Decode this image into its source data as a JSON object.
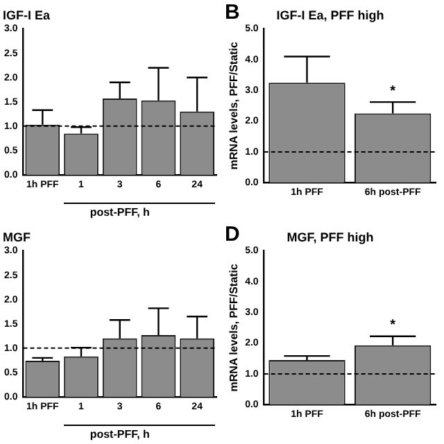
{
  "chart_data": [
    {
      "type": "bar",
      "title": "IGF-I Ea",
      "categories": [
        "1h PFF",
        "1",
        "3",
        "6",
        "24"
      ],
      "values": [
        1.03,
        0.85,
        1.57,
        1.53,
        1.3
      ],
      "errors": [
        [
          1.03,
          1.33
        ],
        [
          0.85,
          0.98
        ],
        [
          1.57,
          1.9
        ],
        [
          1.53,
          2.2
        ],
        [
          1.3,
          2.0
        ]
      ],
      "color": "#8c8c8c",
      "xlabel": "post-PFF, h",
      "ylim": [
        0,
        3
      ],
      "yticks": [
        {
          "value": 0,
          "label": "0.0"
        },
        {
          "value": 0.5,
          "label": "0.5"
        },
        {
          "value": 1,
          "label": "1.0"
        },
        {
          "value": 1.5,
          "label": "1.5"
        },
        {
          "value": 2,
          "label": "2.0"
        },
        {
          "value": 2.5,
          "label": "2.5"
        },
        {
          "value": 3,
          "label": "3.0"
        }
      ],
      "ref_lines": [
        {
          "axis": "y",
          "value": 1,
          "line_style": "dashed"
        }
      ],
      "grid": false,
      "legend": false
    },
    {
      "type": "bar",
      "title": "IGF-I Ea, PFF high",
      "categories": [
        "1h PFF",
        "6h post-PFF"
      ],
      "values": [
        3.25,
        2.25
      ],
      "errors": [
        [
          3.25,
          4.1
        ],
        [
          2.25,
          2.62
        ]
      ],
      "color": "#8c8c8c",
      "ylabel": "mRNA levels, PFF/Static",
      "ylim": [
        0,
        5
      ],
      "yticks": [
        {
          "value": 0,
          "label": "0.0"
        },
        {
          "value": 1,
          "label": "1.0"
        },
        {
          "value": 2,
          "label": "2.0"
        },
        {
          "value": 3,
          "label": "3.0"
        },
        {
          "value": 4,
          "label": "4.0"
        },
        {
          "value": 5,
          "label": "5.0"
        }
      ],
      "ref_lines": [
        {
          "axis": "y",
          "value": 1,
          "line_style": "dashed"
        }
      ],
      "annotations": [
        "B",
        {
          "text": "*",
          "x": "6h post-PFF",
          "y": 2.62
        }
      ],
      "grid": false,
      "legend": false
    },
    {
      "type": "bar",
      "title": "MGF",
      "categories": [
        "1h PFF",
        "1",
        "3",
        "6",
        "24"
      ],
      "values": [
        0.74,
        0.83,
        1.2,
        1.27,
        1.2
      ],
      "errors": [
        [
          0.74,
          0.8
        ],
        [
          0.83,
          1.01
        ],
        [
          1.2,
          1.58
        ],
        [
          1.27,
          1.82
        ],
        [
          1.2,
          1.65
        ]
      ],
      "color": "#8c8c8c",
      "xlabel": "post-PFF, h",
      "ylim": [
        0,
        3
      ],
      "yticks": [
        {
          "value": 0,
          "label": "0.0"
        },
        {
          "value": 0.5,
          "label": "0.5"
        },
        {
          "value": 1,
          "label": "1.0"
        },
        {
          "value": 1.5,
          "label": "1.5"
        },
        {
          "value": 2,
          "label": "2.0"
        },
        {
          "value": 2.5,
          "label": "2.5"
        },
        {
          "value": 3,
          "label": "3.0"
        }
      ],
      "ref_lines": [
        {
          "axis": "y",
          "value": 1,
          "line_style": "dashed"
        }
      ],
      "grid": false,
      "legend": false
    },
    {
      "type": "bar",
      "title": "MGF, PFF high",
      "categories": [
        "1h PFF",
        "6h post-PFF"
      ],
      "values": [
        1.45,
        1.93
      ],
      "errors": [
        [
          1.45,
          1.58
        ],
        [
          1.93,
          2.22
        ]
      ],
      "color": "#8c8c8c",
      "ylabel": "mRNA levels, PFF/Static",
      "ylim": [
        0,
        5
      ],
      "yticks": [
        {
          "value": 0,
          "label": "0.0"
        },
        {
          "value": 1,
          "label": "1.0"
        },
        {
          "value": 2,
          "label": "2.0"
        },
        {
          "value": 3,
          "label": "3.0"
        },
        {
          "value": 4,
          "label": "4.0"
        },
        {
          "value": 5,
          "label": "5.0"
        }
      ],
      "ref_lines": [
        {
          "axis": "y",
          "value": 1,
          "line_style": "dashed"
        }
      ],
      "annotations": [
        "D",
        {
          "text": "*",
          "x": "6h post-PFF",
          "y": 2.22
        }
      ],
      "grid": false,
      "legend": false
    }
  ]
}
